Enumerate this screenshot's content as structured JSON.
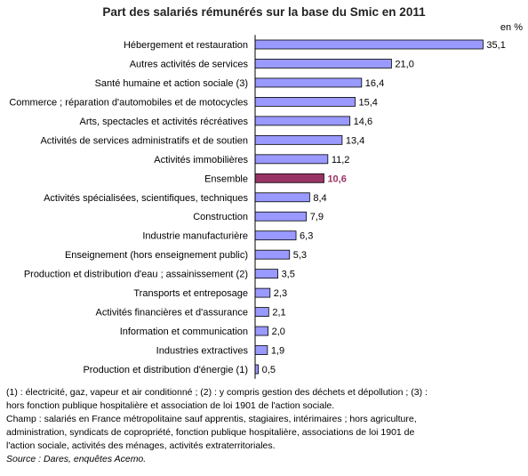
{
  "chart_data": {
    "type": "bar",
    "orientation": "horizontal",
    "title": "Part des salariés rémunérés sur la base du Smic en 2011",
    "unit_label": "en %",
    "xlim": [
      0,
      36
    ],
    "grid": false,
    "legend": "none",
    "colors": {
      "bar": "#9999ff",
      "highlight": "#993366",
      "highlight_text": "#993366",
      "bar_border": "#000000"
    },
    "highlight_category": "Ensemble",
    "categories": [
      "Hébergement et restauration",
      "Autres activités de services",
      "Santé humaine et action sociale (3)",
      "Commerce ; réparation d'automobiles et de motocycles",
      "Arts, spectacles et activités récréatives",
      "Activités de services administratifs et de soutien",
      "Activités immobilières",
      "Ensemble",
      "Activités spécialisées, scientifiques, techniques",
      "Construction",
      "Industrie manufacturière",
      "Enseignement (hors enseignement public)",
      "Production et distribution d'eau ; assainissement (2)",
      "Transports et entreposage",
      "Activités financières et d'assurance",
      "Information et communication",
      "Industries extractives",
      "Production et distribution d'énergie (1)"
    ],
    "values": [
      35.1,
      21.0,
      16.4,
      15.4,
      14.6,
      13.4,
      11.2,
      10.6,
      8.4,
      7.9,
      6.3,
      5.3,
      3.5,
      2.3,
      2.1,
      2.0,
      1.9,
      0.5
    ],
    "value_labels": [
      "35,1",
      "21,0",
      "16,4",
      "15,4",
      "14,6",
      "13,4",
      "11,2",
      "10,6",
      "8,4",
      "7,9",
      "6,3",
      "5,3",
      "3,5",
      "2,3",
      "2,1",
      "2,0",
      "1,9",
      "0,5"
    ]
  },
  "notes": {
    "line1": "(1) : électricité, gaz, vapeur et air conditionné ; (2) : y compris gestion des déchets et dépollution ; (3) :",
    "line2": "hors fonction publique hospitalière et association de loi 1901 de l'action sociale.",
    "line3": "Champ : salariés en France métropolitaine sauf apprentis, stagiaires, intérimaires ;  hors agriculture,",
    "line4": "administration, syndicats de copropriété, fonction publique hospitalière, associations de loi 1901 de",
    "line5": "l'action sociale, activités des ménages, activités extraterritoriales.",
    "source": "Source : Dares, enquêtes Acemo."
  }
}
